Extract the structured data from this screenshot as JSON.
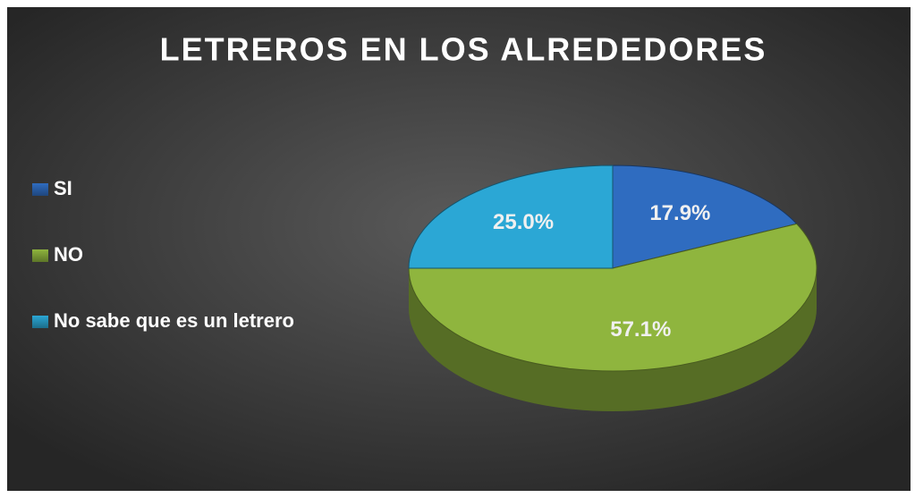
{
  "chart_data": {
    "type": "pie",
    "title": "LETREROS EN LOS ALREDEDORES",
    "categories": [
      "SI",
      "NO",
      "No sabe que es un letrero"
    ],
    "values": [
      17.9,
      57.1,
      25.0
    ],
    "value_labels": [
      "17.9%",
      "57.1%",
      "25.0%"
    ],
    "colors": [
      "#2f6cc0",
      "#8fb53e",
      "#2ba7d5"
    ],
    "legend": "left"
  }
}
